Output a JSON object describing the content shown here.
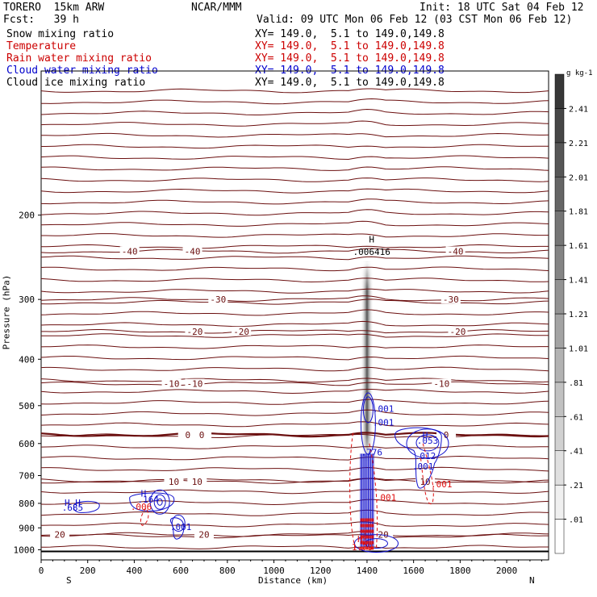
{
  "header": {
    "model": "TORERO  15km ARW",
    "forecast": "Fcst:   39 h",
    "org": "NCAR/MMM",
    "init": "Init: 18 UTC Sat 04 Feb 12",
    "valid": "Valid: 09 UTC Mon 06 Feb 12 (03 CST Mon 06 Feb 12)"
  },
  "legend": [
    {
      "name": "Snow mixing ratio",
      "xy": "XY= 149.0,  5.1 to 149.0,149.8",
      "color": "#000000"
    },
    {
      "name": "Temperature",
      "xy": "XY= 149.0,  5.1 to 149.0,149.8",
      "color": "#cc0000"
    },
    {
      "name": "Rain water mixing ratio",
      "xy": "XY= 149.0,  5.1 to 149.0,149.8",
      "color": "#cc0000"
    },
    {
      "name": "Cloud water mixing ratio",
      "xy": "XY= 149.0,  5.1 to 149.0,149.8",
      "color": "#0000cc"
    },
    {
      "name": "Cloud ice mixing ratio",
      "xy": "XY= 149.0,  5.1 to 149.0,149.8",
      "color": "#000000"
    }
  ],
  "colors": {
    "temperature": "#6b0f0f",
    "rain": "#e01010",
    "cloud_water": "#1010cc",
    "cloud_ice": "#000000"
  },
  "chart_data": {
    "type": "contour cross-section",
    "xlabel": "Distance (km)",
    "ylabel": "Pressure (hPa)",
    "xlim": [
      0,
      2180
    ],
    "ylim": [
      1050,
      100
    ],
    "x_ticks": [
      0,
      200,
      400,
      600,
      800,
      1000,
      1200,
      1400,
      1600,
      1800,
      2000
    ],
    "y_ticks": [
      200,
      300,
      400,
      500,
      600,
      700,
      800,
      900,
      1000
    ],
    "y_scale": "log",
    "left_end": "S",
    "right_end": "N",
    "colorbar": {
      "unit": "g kg-1",
      "labels": [
        ".01",
        ".21",
        ".41",
        ".61",
        ".81",
        "1.01",
        "1.21",
        "1.41",
        "1.61",
        "1.81",
        "2.01",
        "2.21",
        "2.41"
      ]
    },
    "temperature_isotherms": [
      {
        "value": "-40",
        "p": 238,
        "labels_at": [
          380,
          650,
          1780
        ]
      },
      {
        "value": "-30",
        "p": 300,
        "labels_at": [
          760,
          1760
        ]
      },
      {
        "value": "-20",
        "p": 350,
        "labels_at": [
          660,
          860,
          1790
        ]
      },
      {
        "value": "-10",
        "p": 450,
        "labels_at": [
          560,
          660,
          1720
        ]
      },
      {
        "value": "0",
        "p": 575,
        "labels_at": [
          630,
          690,
          1740
        ]
      },
      {
        "value": "10",
        "p": 720,
        "labels_at": [
          570,
          670,
          1650
        ]
      },
      {
        "value": "20",
        "p": 930,
        "labels_at": [
          80,
          700,
          1470
        ]
      }
    ],
    "annotations": [
      {
        "text": "H",
        "x": 1420,
        "p": 228,
        "color": "#000000"
      },
      {
        "text": ".006416",
        "x": 1420,
        "p": 242,
        "color": "#000000"
      },
      {
        "text": "H",
        "x": 1650,
        "p": 585,
        "color": "#1010cc"
      },
      {
        "text": ".053",
        "x": 1660,
        "p": 600,
        "color": "#1010cc"
      },
      {
        "text": ".012",
        "x": 1650,
        "p": 647,
        "color": "#1010cc"
      },
      {
        "text": ".001",
        "x": 1640,
        "p": 680,
        "color": "#1010cc"
      },
      {
        "text": ".001",
        "x": 1470,
        "p": 515,
        "color": "#1010cc"
      },
      {
        "text": ".001",
        "x": 1470,
        "p": 550,
        "color": "#1010cc"
      },
      {
        "text": ".001",
        "x": 1720,
        "p": 740,
        "color": "#e01010"
      },
      {
        "text": ".001",
        "x": 1480,
        "p": 790,
        "color": "#e01010"
      },
      {
        "text": ".776",
        "x": 1420,
        "p": 635,
        "color": "#1010cc"
      },
      {
        "text": "H",
        "x": 440,
        "p": 775,
        "color": "#1010cc"
      },
      {
        "text": ".164",
        "x": 460,
        "p": 797,
        "color": "#1010cc"
      },
      {
        "text": ".006",
        "x": 430,
        "p": 825,
        "color": "#e01010"
      },
      {
        "text": "H  H",
        "x": 135,
        "p": 810,
        "color": "#1010cc"
      },
      {
        "text": ".685",
        "x": 135,
        "p": 828,
        "color": "#1010cc"
      },
      {
        "text": ".001",
        "x": 600,
        "p": 910,
        "color": "#1010cc"
      },
      {
        "text": "H",
        "x": 1370,
        "p": 965,
        "color": "#e01010"
      },
      {
        "text": "1.79",
        "x": 1380,
        "p": 1002,
        "color": "#e01010"
      }
    ]
  }
}
